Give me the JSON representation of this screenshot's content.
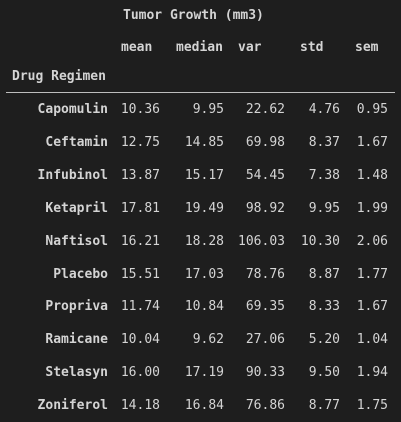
{
  "table": {
    "column_group": "Tumor Growth (mm3)",
    "columns": [
      "mean",
      "median",
      "var",
      "std",
      "sem"
    ],
    "index_name": "Drug Regimen",
    "rows": [
      {
        "label": "Capomulin",
        "values": [
          "10.36",
          "9.95",
          "22.62",
          "4.76",
          "0.95"
        ]
      },
      {
        "label": "Ceftamin",
        "values": [
          "12.75",
          "14.85",
          "69.98",
          "8.37",
          "1.67"
        ]
      },
      {
        "label": "Infubinol",
        "values": [
          "13.87",
          "15.17",
          "54.45",
          "7.38",
          "1.48"
        ]
      },
      {
        "label": "Ketapril",
        "values": [
          "17.81",
          "19.49",
          "98.92",
          "9.95",
          "1.99"
        ]
      },
      {
        "label": "Naftisol",
        "values": [
          "16.21",
          "18.28",
          "106.03",
          "10.30",
          "2.06"
        ]
      },
      {
        "label": "Placebo",
        "values": [
          "15.51",
          "17.03",
          "78.76",
          "8.87",
          "1.77"
        ]
      },
      {
        "label": "Propriva",
        "values": [
          "11.74",
          "10.84",
          "69.35",
          "8.33",
          "1.67"
        ]
      },
      {
        "label": "Ramicane",
        "values": [
          "10.04",
          "9.62",
          "27.06",
          "5.20",
          "1.04"
        ]
      },
      {
        "label": "Stelasyn",
        "values": [
          "16.00",
          "17.19",
          "90.33",
          "9.50",
          "1.94"
        ]
      },
      {
        "label": "Zoniferol",
        "values": [
          "14.18",
          "16.84",
          "76.86",
          "8.77",
          "1.75"
        ]
      }
    ]
  }
}
